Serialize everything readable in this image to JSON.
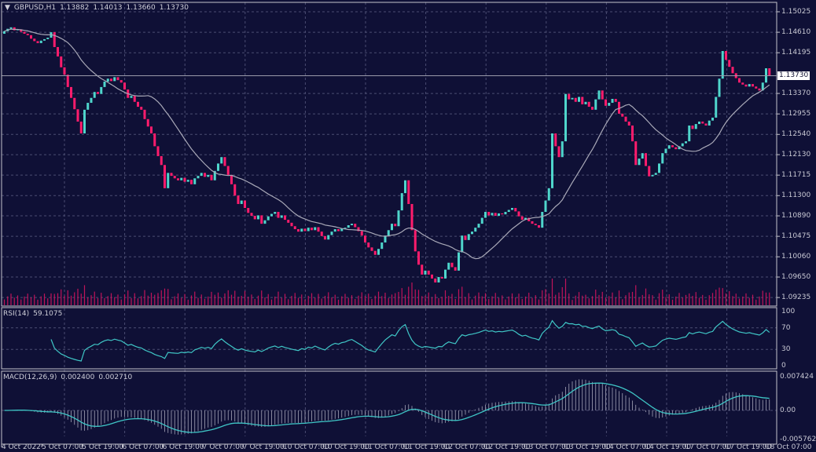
{
  "header": {
    "dropdown_icon": "triangle-down-icon",
    "symbol": "GBPUSD,H1",
    "open": "1.13882",
    "high": "1.14013",
    "low": "1.13660",
    "close": "1.13730"
  },
  "chart_data": {
    "type": "candlestick",
    "symbol": "GBPUSD",
    "timeframe": "H1",
    "x_tick_labels": [
      "4 Oct 2022",
      "5 Oct 07:00",
      "5 Oct 19:00",
      "6 Oct 07:00",
      "6 Oct 19:00",
      "7 Oct 07:00",
      "7 Oct 19:00",
      "10 Oct 07:00",
      "10 Oct 19:00",
      "11 Oct 07:00",
      "11 Oct 19:00",
      "12 Oct 07:00",
      "12 Oct 19:00",
      "13 Oct 07:00",
      "13 Oct 19:00",
      "14 Oct 07:00",
      "14 Oct 19:00",
      "17 Oct 07:00",
      "17 Oct 19:00",
      "18 Oct 07:00"
    ],
    "y_tick_labels": [
      "1.15025",
      "1.14610",
      "1.14195",
      "1.13370",
      "1.12955",
      "1.12540",
      "1.12130",
      "1.11715",
      "1.11300",
      "1.10890",
      "1.10475",
      "1.10060",
      "1.09650",
      "1.09235"
    ],
    "ylim": [
      1.09,
      1.152
    ],
    "last_price": "1.13730",
    "grid": true,
    "first_open": 1.1458,
    "closes": [
      1.1463,
      1.1468,
      1.1471,
      1.1465,
      1.1467,
      1.1462,
      1.1458,
      1.1455,
      1.1448,
      1.1443,
      1.1439,
      1.1444,
      1.1447,
      1.145,
      1.1461,
      1.1431,
      1.1412,
      1.139,
      1.1375,
      1.135,
      1.1328,
      1.1305,
      1.128,
      1.1256,
      1.1304,
      1.1318,
      1.1328,
      1.134,
      1.1336,
      1.135,
      1.1361,
      1.1367,
      1.1362,
      1.137,
      1.1364,
      1.1359,
      1.1345,
      1.1328,
      1.1332,
      1.132,
      1.131,
      1.1304,
      1.1285,
      1.127,
      1.1256,
      1.123,
      1.121,
      1.1192,
      1.1145,
      1.1176,
      1.117,
      1.1165,
      1.1161,
      1.1166,
      1.1158,
      1.1162,
      1.1153,
      1.1165,
      1.117,
      1.1176,
      1.1168,
      1.1172,
      1.1161,
      1.118,
      1.1195,
      1.1208,
      1.119,
      1.1172,
      1.1153,
      1.113,
      1.1113,
      1.112,
      1.1105,
      1.1095,
      1.1089,
      1.1082,
      1.109,
      1.1073,
      1.108,
      1.1088,
      1.1093,
      1.1097,
      1.1085,
      1.109,
      1.1081,
      1.1075,
      1.1068,
      1.1062,
      1.1057,
      1.1063,
      1.1058,
      1.1065,
      1.106,
      1.1066,
      1.1057,
      1.1048,
      1.1041,
      1.105,
      1.1057,
      1.1062,
      1.1058,
      1.1063,
      1.1065,
      1.107,
      1.1073,
      1.1066,
      1.1058,
      1.1049,
      1.1035,
      1.1025,
      1.1018,
      1.101,
      1.1022,
      1.1035,
      1.1049,
      1.106,
      1.1073,
      1.1068,
      1.11,
      1.1135,
      1.1161,
      1.1113,
      1.106,
      1.1017,
      1.099,
      1.097,
      1.0978,
      1.097,
      1.0962,
      1.0954,
      1.0965,
      1.0962,
      1.098,
      1.0994,
      1.0985,
      1.0978,
      1.1015,
      1.1049,
      1.104,
      1.1052,
      1.1057,
      1.1065,
      1.1073,
      1.1085,
      1.1097,
      1.109,
      1.1095,
      1.1089,
      1.1094,
      1.1092,
      1.1097,
      1.1101,
      1.1105,
      1.1098,
      1.1088,
      1.1081,
      1.1085,
      1.1078,
      1.1073,
      1.107,
      1.1065,
      1.1097,
      1.112,
      1.1145,
      1.1256,
      1.123,
      1.1208,
      1.124,
      1.1336,
      1.1325,
      1.1328,
      1.132,
      1.133,
      1.1315,
      1.132,
      1.131,
      1.1304,
      1.1325,
      1.1343,
      1.1325,
      1.1312,
      1.1318,
      1.1326,
      1.132,
      1.1296,
      1.129,
      1.128,
      1.1272,
      1.124,
      1.1192,
      1.1205,
      1.1216,
      1.119,
      1.1169,
      1.1172,
      1.1176,
      1.1195,
      1.1216,
      1.1225,
      1.1232,
      1.1228,
      1.1224,
      1.123,
      1.1236,
      1.124,
      1.1272,
      1.1265,
      1.1275,
      1.128,
      1.1276,
      1.1272,
      1.1282,
      1.1288,
      1.133,
      1.1367,
      1.1423,
      1.1405,
      1.1391,
      1.1378,
      1.1368,
      1.1359,
      1.1355,
      1.1351,
      1.1356,
      1.1351,
      1.1347,
      1.1343,
      1.1359,
      1.1388,
      1.1373
    ],
    "rsi": {
      "name": "RSI(14)",
      "value": "59.1075",
      "ylim": [
        0,
        100
      ],
      "levels": [
        70,
        30
      ],
      "tick_labels": [
        "100",
        "70",
        "30",
        "0"
      ]
    },
    "macd": {
      "name": "MACD(12,26,9)",
      "main": "0.002400",
      "signal": "0.002710",
      "ylim": [
        -0.005762,
        0.007424
      ],
      "tick_labels": [
        "0.007424",
        "0.00",
        "-0.005762"
      ]
    }
  },
  "colors": {
    "background": "#0f1036",
    "grid": "#4b4d72",
    "bull": "#4fd6cc",
    "bear": "#ff1c6c",
    "moving_average": "#a9a9b8",
    "volume": "#c0145a",
    "rsi_line": "#3fc6c6",
    "macd_hist": "#a4a4b8",
    "macd_signal": "#3fc6c6",
    "border": "#c4c4cc"
  }
}
